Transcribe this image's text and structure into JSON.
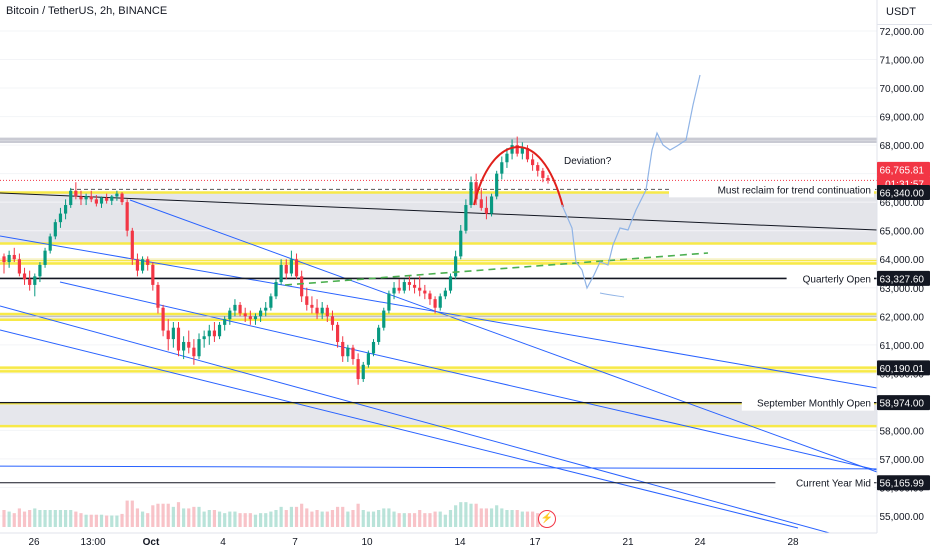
{
  "header": {
    "symbol_title": "Bitcoin / TetherUS, 2h, BINANCE",
    "currency": "USDT"
  },
  "colors": {
    "up": "#089981",
    "down": "#f23645",
    "zone_yellow": "#f7e948",
    "trend_blue": "#2962ff",
    "projection": "#90b4e6",
    "arc_red": "#e0201b",
    "dashed_green": "#4caf50",
    "pill_dark": "#131722"
  },
  "annotations": {
    "deviation": "Deviation?",
    "must_reclaim": "Must reclaim for trend continuation",
    "quarterly_open": "Quarterly Open",
    "september_open": "September Monthly Open",
    "current_year_mid": "Current Year Mid"
  },
  "price_labels": {
    "last_price": "66,765.81",
    "countdown": "01:31:57",
    "level_66340": "66,340.00",
    "level_63327": "63,327.60",
    "level_60190": "60,190.01",
    "level_58974": "58,974.00",
    "level_56165": "56,165.99"
  },
  "chart_data": {
    "type": "candlestick",
    "title": "Bitcoin / TetherUS, 2h, BINANCE",
    "y_axis": {
      "ticks": [
        "72,000.00",
        "71,000.00",
        "70,000.00",
        "69,000.00",
        "68,000.00",
        "67,000.00",
        "66,000.00",
        "65,000.00",
        "64,000.00",
        "63,000.00",
        "62,000.00",
        "61,000.00",
        "60,000.00",
        "59,000.00",
        "58,000.00",
        "57,000.00",
        "56,000.00",
        "55,000.00"
      ],
      "tick_values": [
        72000,
        71000,
        70000,
        69000,
        68000,
        67000,
        66000,
        65000,
        64000,
        63000,
        62000,
        61000,
        60000,
        59000,
        58000,
        57000,
        56000,
        55000
      ],
      "ylim": [
        54600,
        72800
      ]
    },
    "x_axis": {
      "ticks": [
        "26",
        "13:00",
        "Oct",
        "4",
        "7",
        "10",
        "14",
        "17",
        "21",
        "24",
        "28"
      ],
      "bold_ticks": [
        "Oct"
      ]
    },
    "horizontal_levels": [
      {
        "name": "Must reclaim for trend continuation",
        "value": 66450,
        "style": "dashed"
      },
      {
        "name": "Quarterly Open",
        "value": 63327.6
      },
      {
        "name": "September Monthly Open",
        "value": 58974
      },
      {
        "name": "Current Year Mid",
        "value": 56165.99
      }
    ],
    "zones": [
      {
        "name": "top-resistance",
        "from": 68120,
        "to": 68220
      },
      {
        "name": "main-zone",
        "from": 64550,
        "to": 66340
      },
      {
        "name": "mid-zone",
        "from": 63850,
        "to": 63980
      },
      {
        "name": "lower-zone-1",
        "from": 61880,
        "to": 62080
      },
      {
        "name": "lower-zone-2",
        "from": 60070,
        "to": 60200
      },
      {
        "name": "bottom-zone",
        "from": 58150,
        "to": 58950
      }
    ],
    "price_path": [
      [
        64100,
        64200,
        63500,
        63900
      ],
      [
        63900,
        64300,
        63700,
        64150
      ],
      [
        64150,
        64400,
        63900,
        64000
      ],
      [
        64000,
        64200,
        63400,
        63500
      ],
      [
        63500,
        63700,
        63100,
        63300
      ],
      [
        63300,
        63600,
        62900,
        63100
      ],
      [
        63100,
        63500,
        62700,
        63400
      ],
      [
        63400,
        63900,
        63200,
        63800
      ],
      [
        63800,
        64400,
        63700,
        64300
      ],
      [
        64300,
        64900,
        64200,
        64800
      ],
      [
        64800,
        65400,
        64700,
        65300
      ],
      [
        65300,
        65800,
        65100,
        65600
      ],
      [
        65600,
        66100,
        65400,
        65900
      ],
      [
        65900,
        66500,
        65800,
        66400
      ],
      [
        66400,
        66700,
        66100,
        66200
      ],
      [
        66200,
        66400,
        65900,
        66100
      ],
      [
        66100,
        66300,
        65900,
        66200
      ],
      [
        66200,
        66400,
        66000,
        66100
      ],
      [
        66100,
        66250,
        65850,
        65950
      ],
      [
        65950,
        66200,
        65800,
        66150
      ],
      [
        66150,
        66300,
        65950,
        66050
      ],
      [
        66050,
        66250,
        65900,
        66200
      ],
      [
        66200,
        66400,
        66050,
        66300
      ],
      [
        66300,
        66350,
        65900,
        66000
      ],
      [
        66000,
        66100,
        64800,
        65000
      ],
      [
        65000,
        65100,
        63800,
        64000
      ],
      [
        64000,
        64200,
        63400,
        63600
      ],
      [
        63600,
        64100,
        63500,
        64000
      ],
      [
        64000,
        64100,
        63600,
        63800
      ],
      [
        63800,
        63900,
        62900,
        63100
      ],
      [
        63100,
        63200,
        62100,
        62300
      ],
      [
        62300,
        62400,
        61300,
        61500
      ],
      [
        61500,
        61900,
        60800,
        61200
      ],
      [
        61200,
        61800,
        60900,
        61600
      ],
      [
        61600,
        61800,
        60600,
        60800
      ],
      [
        60800,
        61300,
        60500,
        61100
      ],
      [
        61100,
        61500,
        60700,
        60900
      ],
      [
        60900,
        61200,
        60300,
        60600
      ],
      [
        60600,
        61400,
        60500,
        61200
      ],
      [
        61200,
        61500,
        60900,
        61300
      ],
      [
        61300,
        61700,
        61000,
        61500
      ],
      [
        61500,
        61800,
        61100,
        61300
      ],
      [
        61300,
        61800,
        61200,
        61700
      ],
      [
        61700,
        62000,
        61500,
        61900
      ],
      [
        61900,
        62300,
        61700,
        62200
      ],
      [
        62200,
        62600,
        62000,
        62400
      ],
      [
        62400,
        62500,
        62000,
        62100
      ],
      [
        62100,
        62300,
        61800,
        62000
      ],
      [
        62000,
        62200,
        61700,
        61900
      ],
      [
        61900,
        62100,
        61700,
        62000
      ],
      [
        62000,
        62300,
        61800,
        62200
      ],
      [
        62200,
        62500,
        62000,
        62300
      ],
      [
        62300,
        62800,
        62200,
        62700
      ],
      [
        62700,
        63300,
        62600,
        63200
      ],
      [
        63200,
        64000,
        63100,
        63800
      ],
      [
        63800,
        64000,
        63300,
        63500
      ],
      [
        63500,
        64300,
        63400,
        64000
      ],
      [
        64000,
        64200,
        63300,
        63400
      ],
      [
        63400,
        63600,
        62500,
        62700
      ],
      [
        62700,
        63000,
        62200,
        62400
      ],
      [
        62400,
        62700,
        62100,
        62300
      ],
      [
        62300,
        62600,
        61900,
        62100
      ],
      [
        62100,
        62500,
        61900,
        62300
      ],
      [
        62300,
        62400,
        61800,
        62000
      ],
      [
        62000,
        62200,
        61500,
        61700
      ],
      [
        61700,
        61800,
        60900,
        61100
      ],
      [
        61100,
        61300,
        60400,
        60600
      ],
      [
        60600,
        61000,
        60400,
        60900
      ],
      [
        60900,
        61000,
        60300,
        60500
      ],
      [
        60500,
        60700,
        59600,
        59800
      ],
      [
        59800,
        60400,
        59700,
        60300
      ],
      [
        60300,
        60800,
        60200,
        60700
      ],
      [
        60700,
        61200,
        60600,
        61100
      ],
      [
        61100,
        61700,
        61000,
        61600
      ],
      [
        61600,
        62300,
        61500,
        62200
      ],
      [
        62200,
        62900,
        62100,
        62800
      ],
      [
        62800,
        63200,
        62600,
        63000
      ],
      [
        63000,
        63300,
        62800,
        62900
      ],
      [
        62900,
        63300,
        62800,
        63200
      ],
      [
        63200,
        63400,
        62900,
        63100
      ],
      [
        63100,
        63300,
        62800,
        63000
      ],
      [
        63000,
        63400,
        62700,
        62900
      ],
      [
        62900,
        63100,
        62600,
        62800
      ],
      [
        62800,
        62900,
        62400,
        62600
      ],
      [
        62600,
        62700,
        62100,
        62300
      ],
      [
        62300,
        62800,
        62200,
        62700
      ],
      [
        62700,
        63000,
        62600,
        62900
      ],
      [
        62900,
        63500,
        62800,
        63400
      ],
      [
        63400,
        64300,
        63300,
        64100
      ],
      [
        64100,
        65200,
        64000,
        65000
      ],
      [
        65000,
        66100,
        64900,
        65900
      ],
      [
        65900,
        66900,
        65800,
        66700
      ],
      [
        66700,
        67000,
        65900,
        66100
      ],
      [
        66100,
        66500,
        65700,
        65800
      ],
      [
        65800,
        66200,
        65400,
        65600
      ],
      [
        65600,
        66300,
        65500,
        66200
      ],
      [
        66200,
        67100,
        66100,
        67000
      ],
      [
        67000,
        67600,
        66800,
        67400
      ],
      [
        67400,
        67900,
        67200,
        67700
      ],
      [
        67700,
        68200,
        67500,
        68000
      ],
      [
        68000,
        68300,
        67600,
        67700
      ],
      [
        67700,
        68100,
        67500,
        67900
      ],
      [
        67900,
        68000,
        67400,
        67500
      ],
      [
        67500,
        67700,
        67100,
        67300
      ],
      [
        67300,
        67400,
        66900,
        67100
      ],
      [
        67100,
        67200,
        66700,
        66850
      ],
      [
        66850,
        66950,
        66650,
        66766
      ]
    ],
    "volume_spikes_note": "",
    "series": [
      {
        "name": "BTCUSDT 2h",
        "kind": "candles"
      }
    ]
  }
}
